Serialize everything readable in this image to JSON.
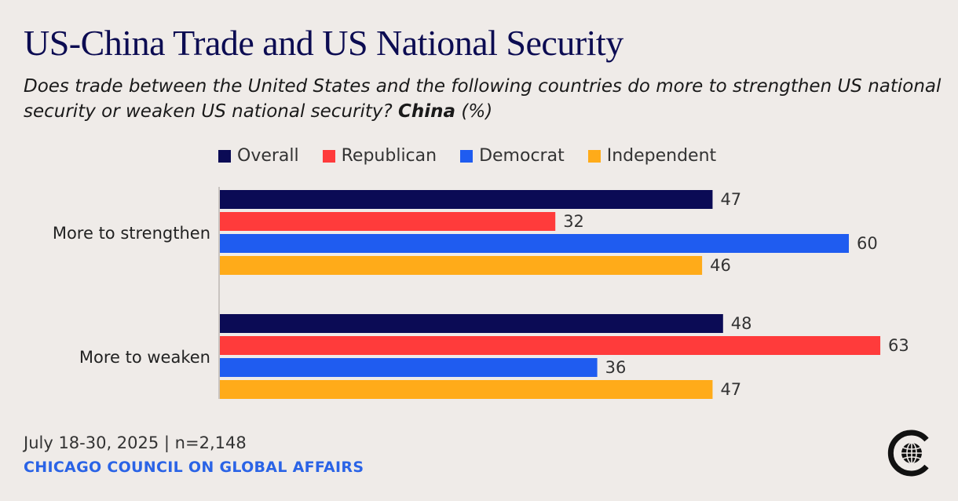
{
  "title": "US-China Trade and US National Security",
  "subtitle_prefix": "Does trade between the United States and the following countries do more to strengthen US national security or weaken US national security?",
  "subtitle_bold": "China",
  "subtitle_suffix": "(%)",
  "footer": {
    "date_line": "July 18-30, 2025 | n=2,148",
    "org": "CHICAGO COUNCIL ON GLOBAL AFFAIRS",
    "logo_icon": "globe-logo-icon"
  },
  "colors": {
    "background": "#efebe8",
    "title": "#0c0c52",
    "org": "#2a63e6"
  },
  "chart_data": {
    "type": "bar",
    "orientation": "horizontal",
    "categories": [
      "More to strengthen",
      "More to weaken"
    ],
    "series": [
      {
        "name": "Overall",
        "color": "#0b0b55",
        "values": [
          47,
          48
        ]
      },
      {
        "name": "Republican",
        "color": "#ff3b3b",
        "values": [
          32,
          63
        ]
      },
      {
        "name": "Democrat",
        "color": "#1f5cf0",
        "values": [
          60,
          36
        ]
      },
      {
        "name": "Independent",
        "color": "#ffab19",
        "values": [
          46,
          47
        ]
      }
    ],
    "xlim": [
      0,
      63
    ],
    "legend": "top",
    "grid": false,
    "data_labels": true
  }
}
